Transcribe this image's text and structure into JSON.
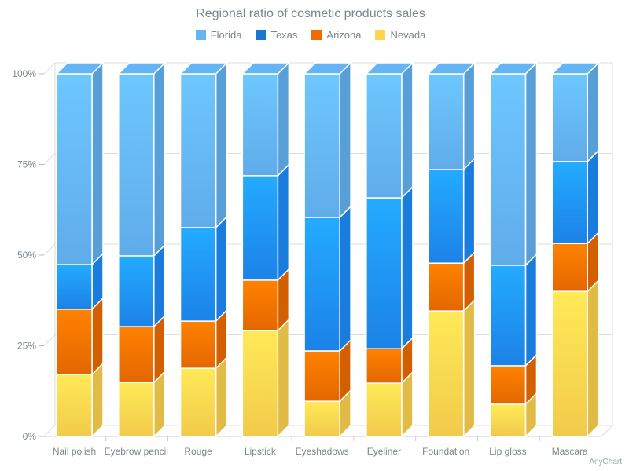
{
  "chart_data": {
    "type": "bar",
    "subtype": "3d-stacked-percent",
    "title": "Regional ratio of cosmetic products sales",
    "categories": [
      "Nail polish",
      "Eyebrow pencil",
      "Rouge",
      "Lipstick",
      "Eyeshadows",
      "Eyeliner",
      "Foundation",
      "Lip gloss",
      "Mascara"
    ],
    "series": [
      {
        "name": "Nevada",
        "color": "#FFD54F",
        "values": [
          17.1,
          14.9,
          18.8,
          29.2,
          9.7,
          14.7,
          34.6,
          8.9,
          40.0
        ]
      },
      {
        "name": "Arizona",
        "color": "#EF6C00",
        "values": [
          18.0,
          15.4,
          13.0,
          13.9,
          13.9,
          9.5,
          13.2,
          10.6,
          13.2
        ]
      },
      {
        "name": "Texas",
        "color": "#1976D2",
        "values": [
          12.3,
          19.5,
          25.8,
          28.8,
          36.8,
          41.6,
          25.8,
          27.7,
          22.6
        ]
      },
      {
        "name": "Florida",
        "color": "#64B5F6",
        "values": [
          52.6,
          50.2,
          42.4,
          28.1,
          39.6,
          34.2,
          26.4,
          52.8,
          24.2
        ]
      }
    ],
    "legend_order": [
      "Florida",
      "Texas",
      "Arizona",
      "Nevada"
    ],
    "yticks": [
      "0%",
      "25%",
      "50%",
      "75%",
      "100%"
    ],
    "ylim": [
      0,
      100
    ],
    "grid": true,
    "legend": "top-center"
  },
  "credit": "AnyChart"
}
